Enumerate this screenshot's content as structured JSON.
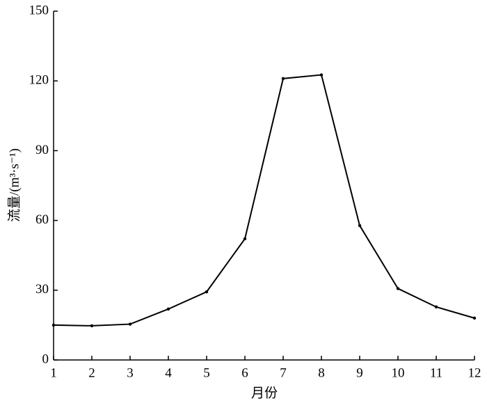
{
  "chart_data": {
    "type": "line",
    "x_label": "月份",
    "y_label": "流量/(m³·s⁻¹)",
    "x": [
      1,
      2,
      3,
      4,
      5,
      6,
      7,
      8,
      9,
      10,
      11,
      12
    ],
    "values": [
      15.0,
      14.7,
      15.4,
      21.9,
      29.3,
      52.1,
      121,
      122.6,
      57.8,
      30.7,
      22.8,
      18.0
    ],
    "color": "#000000",
    "xlim": [
      1,
      12
    ],
    "xticks": [
      1,
      2,
      3,
      4,
      5,
      6,
      7,
      8,
      9,
      10,
      11,
      12
    ],
    "ylim": [
      0,
      150
    ],
    "yticks": [
      0,
      30,
      60,
      90,
      120,
      150
    ],
    "grid": false
  }
}
